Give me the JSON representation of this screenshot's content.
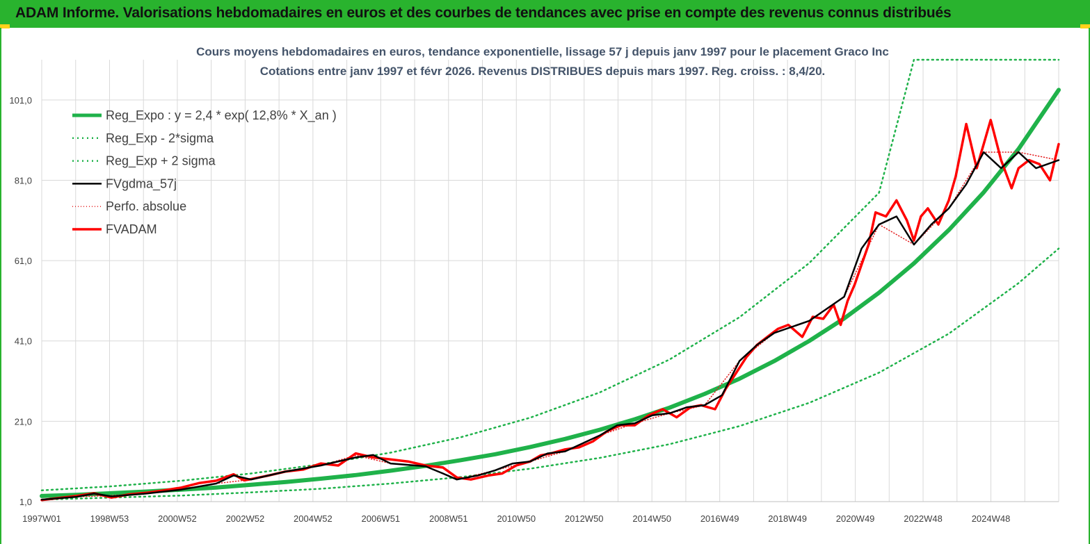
{
  "header": {
    "title": "ADAM Informe. Valorisations hebdomadaires en euros et des courbes de tendances avec prise en compte des revenus connus distribués"
  },
  "colors": {
    "banner": "#29b32e",
    "trend": "#1fb24a",
    "sigma": "#1fb24a",
    "fvgdma": "#000000",
    "perfo": "#e31a1c",
    "fvadam": "#ff0000",
    "grid": "#d9d9d9"
  },
  "chart_data": {
    "type": "line",
    "title": "Cours moyens hebdomadaires en euros, tendance exponentielle, lissage 57 j depuis janv 1997 pour le placement Graco Inc",
    "subtitle": "Cotations entre janv 1997 et févr 2026. Revenus DISTRIBUES depuis mars 1997. Reg. croiss. : 8,4/20.",
    "xlabel": "",
    "ylabel": "",
    "x_tick_labels": [
      "1997W01",
      "1998W53",
      "2000W52",
      "2002W52",
      "2004W52",
      "2006W51",
      "2008W51",
      "2010W50",
      "2012W50",
      "2014W50",
      "2016W49",
      "2018W49",
      "2020W49",
      "2022W48",
      "2024W48"
    ],
    "x_range": [
      1997.0,
      2026.15
    ],
    "y_tick_labels": [
      "1,0",
      "21,0",
      "41,0",
      "61,0",
      "81,0",
      "101,0"
    ],
    "ylim": [
      1,
      111
    ],
    "grid": true,
    "legend_position": "top-left",
    "series": [
      {
        "name": "Reg_Expo : y = 2,4 * exp( 12,8% *  X_an )",
        "style": "solid-thick",
        "x": [
          1997.0,
          1998.0,
          1999.0,
          2000.0,
          2001.0,
          2002.0,
          2003.0,
          2004.0,
          2005.0,
          2006.0,
          2007.0,
          2008.0,
          2009.0,
          2010.0,
          2011.0,
          2012.0,
          2013.0,
          2014.0,
          2015.0,
          2016.0,
          2017.0,
          2018.0,
          2019.0,
          2020.0,
          2021.0,
          2022.0,
          2023.0,
          2024.0,
          2025.0,
          2026.15
        ],
        "values": [
          2.4,
          2.7,
          3.1,
          3.5,
          4.0,
          4.5,
          5.2,
          5.9,
          6.7,
          7.6,
          8.7,
          9.9,
          11.3,
          12.8,
          14.6,
          16.6,
          18.9,
          21.5,
          24.4,
          27.8,
          31.6,
          36.0,
          41.0,
          46.6,
          53.0,
          60.3,
          68.6,
          78.0,
          88.8,
          103.5
        ]
      },
      {
        "name": "Reg_Exp - 2*sigma",
        "style": "dotted",
        "x": [
          1997.0,
          1999.0,
          2001.0,
          2003.0,
          2005.0,
          2007.0,
          2009.0,
          2011.0,
          2013.0,
          2015.0,
          2017.0,
          2019.0,
          2021.0,
          2023.0,
          2025.0,
          2026.15
        ],
        "values": [
          1.5,
          2.0,
          2.5,
          3.3,
          4.2,
          5.5,
          7.1,
          9.2,
          11.9,
          15.3,
          19.8,
          25.6,
          33.1,
          42.8,
          55.4,
          64.0
        ]
      },
      {
        "name": "Reg_Exp + 2 sigma",
        "style": "dotted",
        "x": [
          1997.0,
          1999.0,
          2001.0,
          2003.0,
          2005.0,
          2007.0,
          2009.0,
          2011.0,
          2013.0,
          2015.0,
          2017.0,
          2019.0,
          2021.0,
          2022.0,
          2026.15
        ],
        "values": [
          3.8,
          4.8,
          6.2,
          8.0,
          10.3,
          13.2,
          17.0,
          21.9,
          28.2,
          36.4,
          46.9,
          60.4,
          77.9,
          111.0,
          111.0
        ]
      },
      {
        "name": "FVgdma_57j",
        "style": "solid",
        "x": [
          1997.0,
          1998.0,
          1998.5,
          1999.0,
          2000.0,
          2001.0,
          2002.0,
          2002.5,
          2003.0,
          2004.0,
          2005.0,
          2006.0,
          2006.5,
          2007.0,
          2008.0,
          2008.5,
          2008.9,
          2009.5,
          2010.0,
          2010.5,
          2011.0,
          2011.5,
          2012.0,
          2012.5,
          2013.0,
          2013.5,
          2014.0,
          2014.5,
          2015.0,
          2015.5,
          2016.0,
          2016.5,
          2017.0,
          2017.5,
          2018.0,
          2018.5,
          2019.0,
          2019.5,
          2020.0,
          2020.5,
          2021.0,
          2021.5,
          2022.0,
          2022.5,
          2023.0,
          2023.5,
          2024.0,
          2024.5,
          2025.0,
          2025.5,
          2026.15
        ],
        "values": [
          1.5,
          2.2,
          3.0,
          2.3,
          3.0,
          4.0,
          5.5,
          7.5,
          6.5,
          8.5,
          10.0,
          12.0,
          12.6,
          10.5,
          9.8,
          8.0,
          6.5,
          7.5,
          8.8,
          10.5,
          11.0,
          13.0,
          13.5,
          15.5,
          17.5,
          20.0,
          20.5,
          22.5,
          23.0,
          24.5,
          25.0,
          27.5,
          36.0,
          40.0,
          43.0,
          44.5,
          46.0,
          49.0,
          52.0,
          64.0,
          70.0,
          72.0,
          65.0,
          70.0,
          74.0,
          80.0,
          88.0,
          84.0,
          88.0,
          84.0,
          86.0
        ]
      },
      {
        "name": "Perfo. absolue",
        "style": "dotted",
        "x": [
          1997.0,
          1998.0,
          1999.0,
          2000.0,
          2001.0,
          2002.0,
          2003.0,
          2004.0,
          2005.0,
          2006.0,
          2007.0,
          2008.0,
          2008.9,
          2010.0,
          2011.0,
          2012.0,
          2013.0,
          2014.0,
          2015.0,
          2016.0,
          2017.0,
          2018.0,
          2019.0,
          2020.0,
          2021.0,
          2022.0,
          2023.0,
          2024.0,
          2025.0,
          2026.15
        ],
        "values": [
          1.5,
          2.2,
          2.5,
          3.0,
          4.0,
          5.5,
          6.5,
          8.5,
          10.0,
          12.5,
          10.5,
          9.8,
          6.5,
          8.8,
          11.0,
          13.5,
          17.5,
          20.5,
          23.0,
          25.0,
          36.0,
          43.0,
          46.0,
          52.0,
          70.0,
          65.0,
          74.0,
          88.0,
          88.0,
          86.0
        ]
      },
      {
        "name": "FVADAM",
        "style": "solid-thick",
        "x": [
          1997.0,
          1997.5,
          1998.0,
          1998.5,
          1999.0,
          1999.5,
          2000.0,
          2000.5,
          2001.0,
          2001.5,
          2002.0,
          2002.5,
          2002.8,
          2003.0,
          2003.5,
          2004.0,
          2004.5,
          2005.0,
          2005.5,
          2006.0,
          2006.5,
          2007.0,
          2007.5,
          2008.0,
          2008.5,
          2008.9,
          2009.3,
          2009.8,
          2010.2,
          2010.6,
          2011.0,
          2011.3,
          2011.6,
          2012.0,
          2012.4,
          2012.8,
          2013.2,
          2013.6,
          2014.0,
          2014.4,
          2014.8,
          2015.2,
          2015.6,
          2015.9,
          2016.3,
          2016.6,
          2016.9,
          2017.2,
          2017.5,
          2017.8,
          2018.1,
          2018.4,
          2018.8,
          2019.1,
          2019.4,
          2019.7,
          2019.9,
          2020.1,
          2020.3,
          2020.5,
          2020.7,
          2020.9,
          2021.2,
          2021.5,
          2021.8,
          2022.0,
          2022.2,
          2022.4,
          2022.7,
          2023.0,
          2023.2,
          2023.5,
          2023.8,
          2024.0,
          2024.2,
          2024.5,
          2024.8,
          2025.0,
          2025.3,
          2025.6,
          2025.9,
          2026.15
        ],
        "values": [
          1.4,
          1.9,
          2.4,
          3.1,
          2.0,
          2.8,
          3.2,
          3.8,
          4.5,
          5.6,
          6.2,
          7.8,
          6.3,
          6.6,
          7.5,
          8.5,
          9.0,
          10.5,
          10.0,
          13.0,
          12.0,
          11.5,
          11.0,
          10.0,
          9.5,
          7.0,
          6.5,
          7.5,
          8.0,
          10.0,
          11.0,
          12.5,
          13.0,
          14.0,
          14.5,
          16.0,
          18.5,
          20.0,
          20.0,
          22.5,
          24.0,
          22.0,
          24.5,
          25.0,
          24.0,
          29.0,
          33.0,
          37.0,
          40.0,
          42.0,
          44.0,
          45.0,
          42.0,
          47.0,
          46.5,
          50.0,
          45.0,
          51.0,
          55.0,
          60.0,
          65.0,
          73.0,
          72.0,
          76.0,
          71.0,
          66.0,
          72.0,
          74.0,
          70.0,
          76.0,
          82.0,
          95.0,
          84.0,
          90.0,
          96.0,
          86.0,
          79.0,
          84.0,
          86.0,
          85.0,
          81.0,
          90.0
        ]
      }
    ]
  }
}
